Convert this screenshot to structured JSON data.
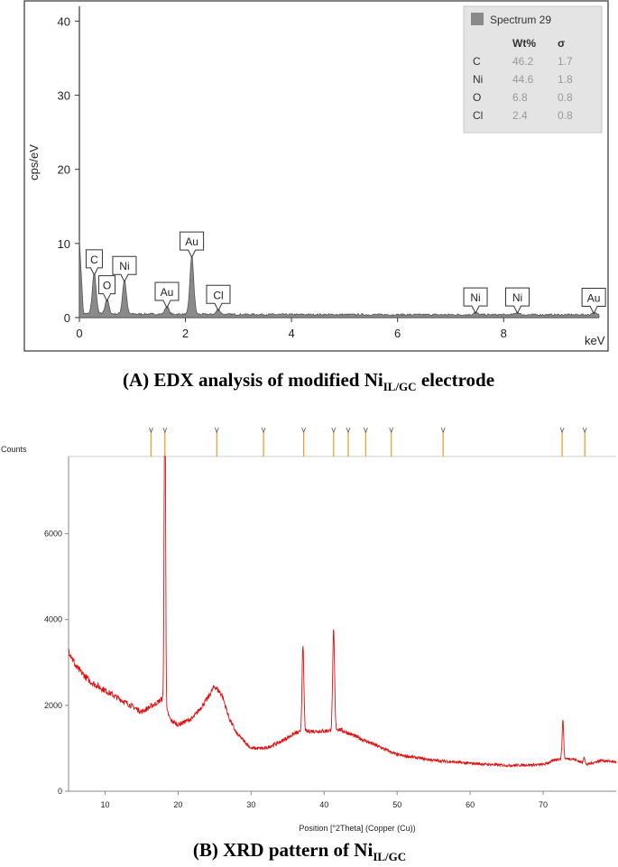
{
  "captions": {
    "a_main": "(A) EDX analysis of modified Ni",
    "a_sub": "IL/GC",
    "a_tail": " electrode",
    "b_main": "(B) XRD pattern of Ni",
    "b_sub": "IL/GC"
  },
  "chart_data": [
    {
      "type": "line",
      "ylabel": "cps/eV",
      "xunit": "keV",
      "xlim": [
        0,
        9.8
      ],
      "ylim": [
        0,
        42
      ],
      "x_ticks": [
        0,
        2,
        4,
        6,
        8
      ],
      "y_ticks": [
        0,
        10,
        20,
        30,
        40
      ],
      "x_tick_labels": [
        "0",
        "2",
        "4",
        "6",
        "8"
      ],
      "y_tick_labels": [
        "0",
        "10",
        "20",
        "30",
        "40"
      ],
      "color": "#666666",
      "peaks": [
        {
          "label": "C",
          "x": 0.28,
          "y": 5.5
        },
        {
          "label": "O",
          "x": 0.52,
          "y": 2.0
        },
        {
          "label": "Ni",
          "x": 0.85,
          "y": 4.6
        },
        {
          "label": "Au",
          "x": 1.65,
          "y": 1.1
        },
        {
          "label": "Au",
          "x": 2.12,
          "y": 7.9
        },
        {
          "label": "Cl",
          "x": 2.62,
          "y": 0.7
        },
        {
          "label": "Ni",
          "x": 7.47,
          "y": 0.35
        },
        {
          "label": "Ni",
          "x": 8.26,
          "y": 0.35
        },
        {
          "label": "Au",
          "x": 9.7,
          "y": 0.3
        }
      ],
      "legend": {
        "title": "Spectrum 29",
        "placement": "top-right",
        "headers": [
          "Wt%",
          "σ"
        ],
        "rows": [
          {
            "element": "C",
            "wt": "46.2",
            "sigma": "1.7"
          },
          {
            "element": "Ni",
            "wt": "44.6",
            "sigma": "1.8"
          },
          {
            "element": "O",
            "wt": "6.8",
            "sigma": "0.8"
          },
          {
            "element": "Cl",
            "wt": "2.4",
            "sigma": "0.8"
          }
        ]
      }
    },
    {
      "type": "line",
      "ylabel": "Counts",
      "xlabel": "Position [°2Theta] (Copper (Cu))",
      "xlim": [
        5,
        80
      ],
      "ylim": [
        0,
        7800
      ],
      "x_ticks": [
        10,
        20,
        30,
        40,
        50,
        60,
        70
      ],
      "y_ticks": [
        0,
        2000,
        4000,
        6000
      ],
      "x_tick_labels": [
        "10",
        "20",
        "30",
        "40",
        "50",
        "60",
        "70"
      ],
      "y_tick_labels": [
        "0",
        "2000",
        "4000",
        "6000"
      ],
      "color": "#e01010",
      "baseline": [
        [
          5,
          3300
        ],
        [
          6,
          2900
        ],
        [
          8,
          2550
        ],
        [
          10,
          2350
        ],
        [
          12,
          2150
        ],
        [
          14,
          1950
        ],
        [
          15,
          1850
        ],
        [
          16,
          1950
        ],
        [
          17,
          2050
        ],
        [
          17.8,
          2150
        ],
        [
          19,
          1650
        ],
        [
          20,
          1550
        ],
        [
          22,
          1700
        ],
        [
          24,
          2150
        ],
        [
          25,
          2450
        ],
        [
          26,
          2250
        ],
        [
          27,
          1700
        ],
        [
          28,
          1350
        ],
        [
          30,
          1000
        ],
        [
          32,
          1000
        ],
        [
          34,
          1150
        ],
        [
          36,
          1350
        ],
        [
          38,
          1400
        ],
        [
          40,
          1400
        ],
        [
          42,
          1450
        ],
        [
          44,
          1300
        ],
        [
          46,
          1150
        ],
        [
          48,
          1000
        ],
        [
          50,
          850
        ],
        [
          55,
          720
        ],
        [
          60,
          650
        ],
        [
          65,
          600
        ],
        [
          70,
          620
        ],
        [
          72,
          750
        ],
        [
          74,
          760
        ],
        [
          76,
          620
        ],
        [
          78,
          720
        ],
        [
          80,
          680
        ]
      ],
      "peaks": [
        {
          "x": 18.15,
          "y": 7550,
          "width": 0.12
        },
        {
          "x": 18.25,
          "y": 6300,
          "width": 0.1
        },
        {
          "x": 37.1,
          "y": 3350,
          "width": 0.18
        },
        {
          "x": 41.3,
          "y": 3750,
          "width": 0.18
        },
        {
          "x": 72.7,
          "y": 1650,
          "width": 0.15
        },
        {
          "x": 75.6,
          "y": 800,
          "width": 0.15
        }
      ],
      "reference_marks": [
        16.3,
        18.2,
        25.3,
        31.7,
        37.2,
        41.3,
        43.3,
        45.7,
        49.2,
        56.3,
        72.6,
        75.7
      ]
    }
  ]
}
